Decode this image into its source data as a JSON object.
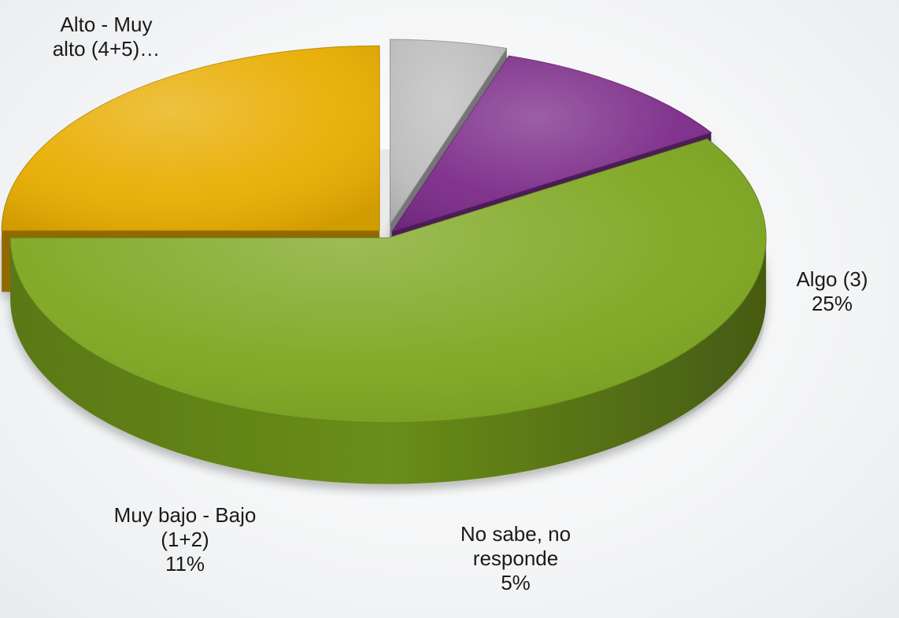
{
  "chart_data": {
    "type": "pie",
    "style": "3d-exploded",
    "slices": [
      {
        "category": "Alto - Muy alto (4+5)",
        "value": 59,
        "label_lines": [
          "Alto - Muy",
          "alto (4+5)…"
        ],
        "color": "#7da61f"
      },
      {
        "category": "Algo (3)",
        "value": 25,
        "label_lines": [
          "Algo (3)",
          "25%"
        ],
        "color": "#e8ad00"
      },
      {
        "category": "No sabe, no responde",
        "value": 5,
        "label_lines": [
          "No sabe, no",
          "responde",
          "5%"
        ],
        "color": "#bdbdbd"
      },
      {
        "category": "Muy bajo - Bajo (1+2)",
        "value": 11,
        "label_lines": [
          "Muy bajo - Bajo",
          "(1+2)",
          "11%"
        ],
        "color": "#7b2a88"
      }
    ]
  }
}
